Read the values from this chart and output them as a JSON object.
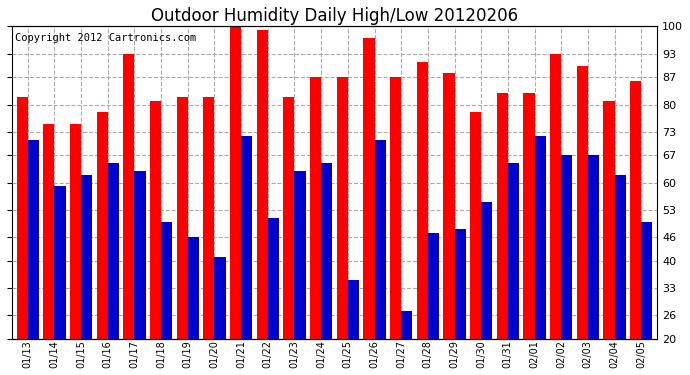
{
  "title": "Outdoor Humidity Daily High/Low 20120206",
  "copyright": "Copyright 2012 Cartronics.com",
  "dates": [
    "01/13",
    "01/14",
    "01/15",
    "01/16",
    "01/17",
    "01/18",
    "01/19",
    "01/20",
    "01/21",
    "01/22",
    "01/23",
    "01/24",
    "01/25",
    "01/26",
    "01/27",
    "01/28",
    "01/29",
    "01/30",
    "01/31",
    "02/01",
    "02/02",
    "02/03",
    "02/04",
    "02/05"
  ],
  "highs": [
    82,
    75,
    75,
    78,
    93,
    81,
    82,
    82,
    100,
    99,
    82,
    87,
    87,
    97,
    87,
    91,
    88,
    78,
    83,
    83,
    93,
    90,
    81,
    86
  ],
  "lows": [
    71,
    59,
    62,
    65,
    63,
    50,
    46,
    41,
    72,
    51,
    63,
    65,
    35,
    71,
    27,
    47,
    48,
    55,
    65,
    72,
    67,
    67,
    62,
    50
  ],
  "high_color": "#FF0000",
  "low_color": "#0000CC",
  "bg_color": "#FFFFFF",
  "plot_bg_color": "#FFFFFF",
  "grid_color": "#AAAAAA",
  "ymin": 20,
  "ymax": 100,
  "yticks": [
    20,
    26,
    33,
    40,
    46,
    53,
    60,
    67,
    73,
    80,
    87,
    93,
    100
  ],
  "title_fontsize": 12,
  "copyright_fontsize": 7.5
}
